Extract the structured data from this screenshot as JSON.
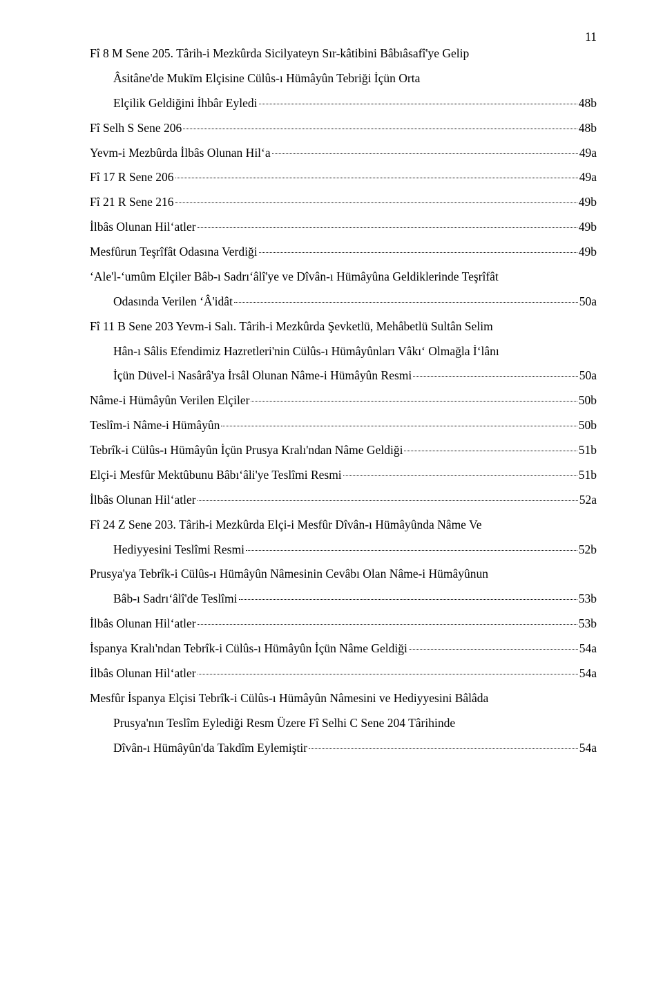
{
  "page_number": "11",
  "typography": {
    "font_family": "Times New Roman",
    "font_size_pt": 13,
    "line_height": 2.05,
    "text_color": "#000000",
    "background_color": "#ffffff"
  },
  "entries": [
    {
      "lines": [
        "Fî 8 M Sene 205. Târih-i Mezkûrda Sicilyateyn Sır-kâtibini Bâbıâsafî'ye Gelip",
        "Âsitâne'de Mukīm Elçisine Cülûs-ı Hümâyûn Tebriği İçün Orta"
      ],
      "last_line": "Elçilik Geldiğini İhbâr Eyledi",
      "page": "48b",
      "hang": true
    },
    {
      "single": "Fî Selh S Sene 206",
      "page": "48b"
    },
    {
      "single": "Yevm-i Mezbûrda İlbâs Olunan Hilʻa",
      "page": "49a"
    },
    {
      "single": "Fî 17 R Sene 206",
      "page": "49a"
    },
    {
      "single": "Fî 21 R Sene 216",
      "page": "49b"
    },
    {
      "single": "İlbâs Olunan Hilʻatler",
      "page": "49b"
    },
    {
      "single": "Mesfûrun Teşrîfât Odasına Verdiği",
      "page": "49b"
    },
    {
      "lines": [
        "ʻAle'l-ʻumûm Elçiler Bâb-ı Sadrıʻâlî'ye ve Dîvân-ı Hümâyûna Geldiklerinde Teşrîfât"
      ],
      "last_line": "Odasında Verilen ʻÂ'idât",
      "page": "50a",
      "hang": true
    },
    {
      "lines": [
        "Fî 11 B Sene 203 Yevm-i Salı. Târih-i Mezkûrda Şevketlü, Mehâbetlü Sultân Selim",
        "Hân-ı Sâlis Efendimiz Hazretleri'nin Cülûs-ı Hümâyûnları Vâkıʻ Olmağla İʻlânı"
      ],
      "last_line": "İçün Düvel-i Nasârâ'ya İrsâl Olunan Nâme-i Hümâyûn Resmi",
      "page": "50a",
      "hang": true
    },
    {
      "single": "Nâme-i Hümâyûn Verilen Elçiler",
      "page": "50b"
    },
    {
      "single": "Teslîm-i Nâme-i Hümâyûn",
      "page": "50b"
    },
    {
      "single": "Tebrîk-i Cülûs-ı Hümâyûn İçün Prusya Kralı'ndan Nâme Geldiği",
      "page": "51b"
    },
    {
      "single": "Elçi-i Mesfûr Mektûbunu Bâbıʻâli'ye Teslîmi Resmi",
      "page": "51b"
    },
    {
      "single": "İlbâs Olunan Hilʻatler",
      "page": "52a"
    },
    {
      "lines": [
        "Fî 24 Z Sene 203. Târih-i Mezkûrda Elçi-i Mesfûr Dîvân-ı Hümâyûnda Nâme Ve"
      ],
      "last_line": "Hediyyesini Teslîmi Resmi",
      "page": "52b",
      "hang": true
    },
    {
      "lines": [
        "Prusya'ya Tebrîk-i Cülûs-ı Hümâyûn Nâmesinin Cevâbı Olan Nâme-i Hümâyûnun"
      ],
      "last_line": "Bâb-ı Sadrıʻâlî'de Teslîmi",
      "page": "53b",
      "hang": true
    },
    {
      "single": "İlbâs Olunan Hilʻatler",
      "page": "53b"
    },
    {
      "single": "İspanya Kralı'ndan  Tebrîk-i Cülûs-ı Hümâyûn İçün Nâme Geldiği",
      "page": "54a"
    },
    {
      "single": "İlbâs Olunan Hilʻatler",
      "page": "54a"
    },
    {
      "lines": [
        "Mesfûr İspanya Elçisi Tebrîk-i Cülûs-ı Hümâyûn Nâmesini ve Hediyyesini Bâlâda",
        "Prusya'nın Teslîm Eylediği Resm Üzere Fî Selhi C Sene 204 Târihinde"
      ],
      "last_line": "Dîvân-ı Hümâyûn'da Takdîm Eylemiştir",
      "page": "54a",
      "hang": true
    }
  ]
}
